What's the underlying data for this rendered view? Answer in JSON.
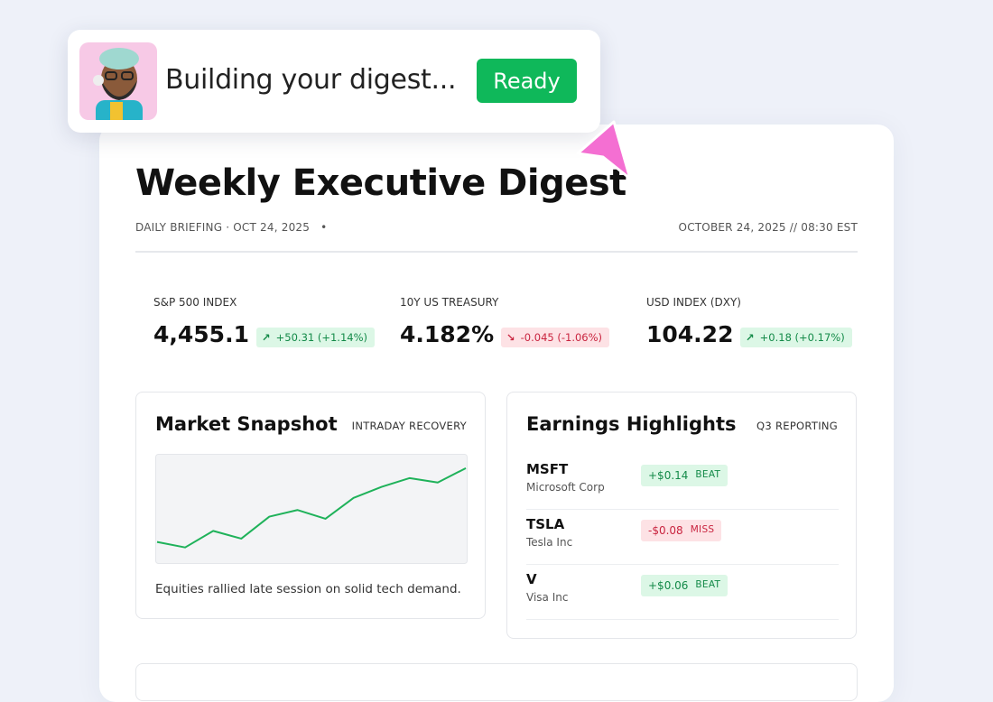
{
  "toast": {
    "text": "Building your digest...",
    "button": "Ready"
  },
  "header": {
    "title": "Weekly Executive Digest",
    "subtitle": "DAILY BRIEFING · OCT 24, 2025",
    "timestamp": "OCTOBER 24, 2025 // 08:30 EST"
  },
  "metrics": [
    {
      "label": "S&P 500 INDEX",
      "value": "4,455.1",
      "change": "+50.31 (+1.14%)"
    },
    {
      "label": "10Y US TREASURY",
      "value": "4.182%",
      "change": "-0.045 (-1.06%)"
    },
    {
      "label": "USD INDEX (DXY)",
      "value": "104.22",
      "change": "+0.18 (+0.17%)"
    }
  ],
  "snapshot": {
    "title": "Market Snapshot",
    "tag": "INTRADAY RECOVERY",
    "caption": "Equities rallied late session on solid tech demand.",
    "chart_data": {
      "type": "line",
      "values": [
        20,
        15,
        30,
        23,
        43,
        49,
        41,
        60,
        70,
        78,
        74,
        87
      ],
      "ylim": [
        0,
        100
      ],
      "color": "#1fb25a"
    }
  },
  "earnings": {
    "title": "Earnings Highlights",
    "tag": "Q3 REPORTING",
    "rows": [
      {
        "ticker": "MSFT",
        "company": "Microsoft Corp",
        "delta": "+$0.14",
        "result": "BEAT"
      },
      {
        "ticker": "TSLA",
        "company": "Tesla Inc",
        "delta": "-$0.08",
        "result": "MISS"
      },
      {
        "ticker": "V",
        "company": "Visa Inc",
        "delta": "+$0.06",
        "result": "BEAT"
      }
    ]
  }
}
